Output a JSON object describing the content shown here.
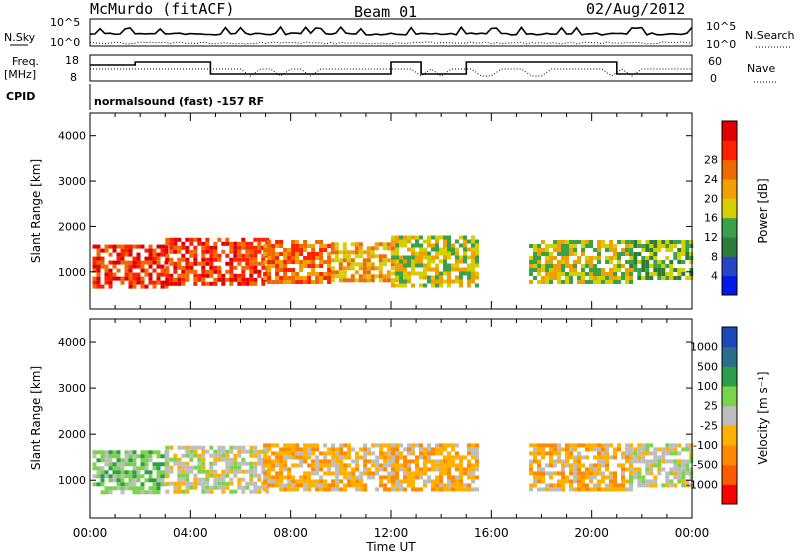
{
  "header": {
    "station": "McMurdo (fitACF)",
    "beam": "Beam 01",
    "date": "02/Aug/2012"
  },
  "noise_panel": {
    "left_label": "N.Sky",
    "right_label": "N.Search",
    "left_ticks": [
      "10^5",
      "10^0"
    ],
    "right_ticks": [
      "10^5",
      "10^0"
    ]
  },
  "freq_panel": {
    "left_label_1": "Freq.",
    "left_label_2": "[MHz]",
    "right_label": "Nave",
    "left_ticks": [
      "18",
      "8"
    ],
    "right_ticks": [
      "60",
      "0"
    ]
  },
  "cpid": {
    "label": "CPID",
    "value": "normalsound (fast) -157 RF"
  },
  "colors": {
    "power_scale": [
      "#0018e8",
      "#2a44c8",
      "#2a7e3a",
      "#3aa04a",
      "#d4d000",
      "#f0a000",
      "#f06800",
      "#ff2000",
      "#e00000"
    ],
    "velocity_scale": [
      "#ff0000",
      "#ff5a00",
      "#ff8a00",
      "#ffb000",
      "#bdbdbd",
      "#7ad34a",
      "#2a9e4a",
      "#2a6e8a",
      "#1a4ab8"
    ]
  },
  "chart_data": [
    {
      "type": "heatmap",
      "title": "Power",
      "ylabel": "Slant Range [km]",
      "xlabel": "",
      "ylim": [
        180,
        4500
      ],
      "yticks": [
        "1000",
        "2000",
        "3000",
        "4000"
      ],
      "xlim_hours": [
        0,
        24
      ],
      "colorbar": {
        "label": "Power [dB]",
        "ticks": [
          "4",
          "8",
          "12",
          "16",
          "20",
          "24",
          "28"
        ],
        "range": [
          0,
          30
        ]
      },
      "regions": [
        {
          "t0": 0.1,
          "t1": 3.1,
          "r0": 700,
          "r1": 1600,
          "level": "28"
        },
        {
          "t0": 3.0,
          "t1": 7.0,
          "r0": 750,
          "r1": 1750,
          "level": "28"
        },
        {
          "t0": 6.9,
          "t1": 9.5,
          "r0": 800,
          "r1": 1700,
          "level": "24"
        },
        {
          "t0": 9.6,
          "t1": 12.2,
          "r0": 850,
          "r1": 1650,
          "level": "20"
        },
        {
          "t0": 12.0,
          "t1": 15.5,
          "r0": 700,
          "r1": 1800,
          "level": "16"
        },
        {
          "t0": 17.5,
          "t1": 21.5,
          "r0": 800,
          "r1": 1700,
          "level": "16"
        },
        {
          "t0": 21.5,
          "t1": 24.0,
          "r0": 900,
          "r1": 1700,
          "level": "12"
        }
      ]
    },
    {
      "type": "heatmap",
      "title": "Velocity",
      "ylabel": "Slant Range [km]",
      "xlabel": "Time UT",
      "ylim": [
        180,
        4500
      ],
      "yticks": [
        "1000",
        "2000",
        "3000",
        "4000"
      ],
      "xlim_hours": [
        0,
        24
      ],
      "xticks": [
        "00:00",
        "04:00",
        "08:00",
        "12:00",
        "16:00",
        "20:00",
        "00:00"
      ],
      "colorbar": {
        "label": "Velocity [m s⁻¹]",
        "ticks": [
          "1000",
          "500",
          "100",
          "25",
          "-25",
          "-100",
          "-500",
          "-1000"
        ],
        "range": [
          -1000,
          1000
        ]
      },
      "regions": [
        {
          "t0": 0.1,
          "t1": 3.1,
          "r0": 700,
          "r1": 1650,
          "level": "25"
        },
        {
          "t0": 3.0,
          "t1": 7.0,
          "r0": 750,
          "r1": 1750,
          "level": "-25"
        },
        {
          "t0": 6.9,
          "t1": 12.2,
          "r0": 800,
          "r1": 1800,
          "level": "-100"
        },
        {
          "t0": 12.0,
          "t1": 15.5,
          "r0": 800,
          "r1": 1800,
          "level": "-100"
        },
        {
          "t0": 17.5,
          "t1": 21.5,
          "r0": 800,
          "r1": 1800,
          "level": "-100"
        },
        {
          "t0": 21.5,
          "t1": 24.0,
          "r0": 900,
          "r1": 1800,
          "level": "-25"
        }
      ]
    }
  ]
}
